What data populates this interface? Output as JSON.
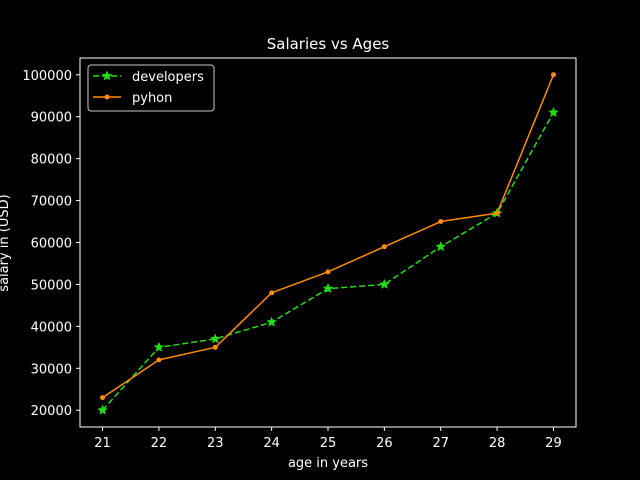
{
  "chart_data": {
    "type": "line",
    "title": "Salaries vs Ages",
    "xlabel": "age in years",
    "ylabel": "salary in (USD)",
    "x": [
      21,
      22,
      23,
      24,
      25,
      26,
      27,
      28,
      29
    ],
    "xlim": [
      20.6,
      29.4
    ],
    "ylim": [
      16000,
      104000
    ],
    "xticks": [
      21,
      22,
      23,
      24,
      25,
      26,
      27,
      28,
      29
    ],
    "yticks": [
      20000,
      30000,
      40000,
      50000,
      60000,
      70000,
      80000,
      90000,
      100000
    ],
    "grid": false,
    "legend_position": "top-left",
    "background_color": "#000000",
    "foreground_color": "#ffffff",
    "series": [
      {
        "name": "developers",
        "color": "#22dd11",
        "line_style": "dashed",
        "marker": "star",
        "values": [
          20000,
          35000,
          37000,
          41000,
          49000,
          50000,
          59000,
          67000,
          91000
        ]
      },
      {
        "name": "pyhon",
        "color": "#ff8c00",
        "line_style": "solid",
        "marker": "dot",
        "values": [
          23000,
          32000,
          35000,
          48000,
          53000,
          59000,
          65000,
          67000,
          100000
        ]
      }
    ]
  }
}
